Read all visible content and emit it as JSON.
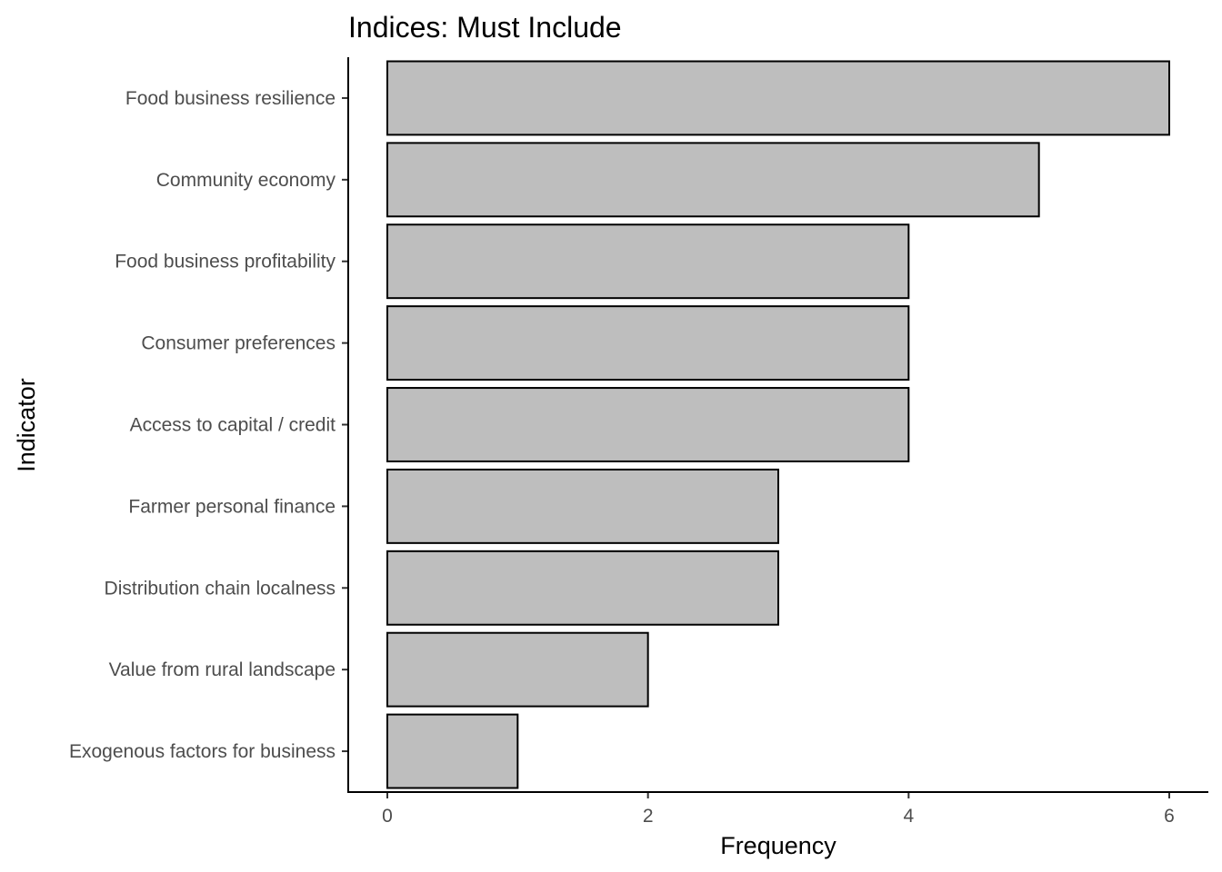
{
  "chart_data": {
    "type": "bar",
    "orientation": "horizontal",
    "title": "Indices: Must Include",
    "xlabel": "Frequency",
    "ylabel": "Indicator",
    "categories": [
      "Food business resilience",
      "Community economy",
      "Food business profitability",
      "Consumer preferences",
      "Access to capital / credit",
      "Farmer personal finance",
      "Distribution chain localness",
      "Value from rural landscape",
      "Exogenous factors for business"
    ],
    "values": [
      6,
      5,
      4,
      4,
      4,
      3,
      3,
      2,
      1
    ],
    "xlim": [
      -0.3,
      6.3
    ],
    "xticks": [
      0,
      2,
      4,
      6
    ],
    "bar_color": "#bebebe",
    "grid": false,
    "legend": "none"
  }
}
